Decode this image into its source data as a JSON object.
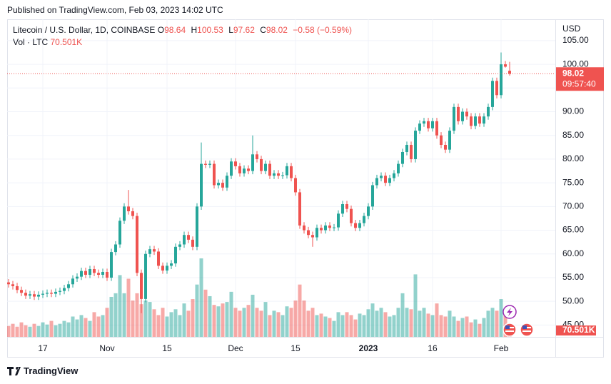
{
  "chart_data": {
    "type": "candlestick",
    "published": "Published on TradingView.com, Feb 03, 2023 14:02 UTC",
    "brand": "TradingView",
    "ohlc_letters": [
      "O",
      "H",
      "L",
      "C"
    ],
    "change": "−0.58 (−0.59%)",
    "ylabel": "USD",
    "countdown": "09:57:40",
    "grid": true,
    "ylim": [
      42.5,
      109.5
    ],
    "yticks": [
      {
        "value": 45,
        "label": "45.00"
      },
      {
        "value": 50,
        "label": "50.00"
      },
      {
        "value": 55,
        "label": "55.00"
      },
      {
        "value": 60,
        "label": "60.00"
      },
      {
        "value": 65,
        "label": "65.00"
      },
      {
        "value": 70,
        "label": "70.00"
      },
      {
        "value": 75,
        "label": "75.00"
      },
      {
        "value": 80,
        "label": "80.00"
      },
      {
        "value": 85,
        "label": "85.00"
      },
      {
        "value": 90,
        "label": "90.00"
      },
      {
        "value": 95,
        "label": "95.00"
      },
      {
        "value": 100,
        "label": "100.00"
      },
      {
        "value": 105,
        "label": "105.00"
      }
    ],
    "x": [
      null,
      null,
      null,
      null,
      null,
      null,
      null,
      null,
      "17",
      null,
      null,
      null,
      null,
      null,
      null,
      null,
      null,
      null,
      null,
      null,
      null,
      null,
      null,
      "Nov",
      null,
      null,
      null,
      null,
      null,
      null,
      null,
      null,
      null,
      null,
      null,
      null,
      null,
      "15",
      null,
      null,
      null,
      null,
      null,
      null,
      null,
      null,
      null,
      null,
      null,
      null,
      null,
      null,
      null,
      "Dec",
      null,
      null,
      null,
      null,
      null,
      null,
      null,
      null,
      null,
      null,
      null,
      null,
      null,
      "15",
      null,
      null,
      null,
      null,
      null,
      null,
      null,
      null,
      null,
      null,
      null,
      null,
      null,
      null,
      null,
      null,
      "2023",
      null,
      null,
      null,
      null,
      null,
      null,
      null,
      null,
      null,
      null,
      null,
      null,
      null,
      null,
      "16",
      null,
      null,
      null,
      null,
      null,
      null,
      null,
      null,
      null,
      null,
      null,
      null,
      null,
      null,
      null,
      "Feb",
      null,
      null
    ],
    "series": [
      {
        "name": "Litecoin / U.S. Dollar, 1D, COINBASE",
        "up_color": "#26a69a",
        "down_color": "#ef5350",
        "open": [
          54.0,
          53.6,
          53.2,
          52.4,
          51.8,
          51.2,
          51.5,
          51.0,
          51.4,
          51.6,
          51.8,
          51.6,
          52.0,
          52.2,
          52.8,
          53.6,
          54.8,
          55.2,
          56.4,
          55.6,
          56.8,
          56.0,
          55.6,
          56.2,
          55.0,
          60.4,
          62.0,
          67.0,
          70.0,
          69.0,
          68.0,
          56.0,
          50.5,
          60.0,
          61.0,
          60.5,
          57.5,
          56.5,
          57.5,
          58.0,
          61.5,
          62.0,
          64.0,
          63.0,
          61.5,
          70.0,
          79.0,
          78.8,
          79.0,
          74.5,
          75.0,
          74.0,
          76.5,
          79.5,
          78.5,
          77.0,
          78.0,
          77.5,
          81.0,
          80.0,
          77.5,
          79.0,
          76.5,
          77.0,
          76.5,
          76.6,
          78.5,
          76.0,
          73.0,
          66.0,
          65.0,
          64.0,
          63.5,
          65.5,
          65.0,
          66.0,
          65.5,
          65.6,
          68.5,
          70.5,
          69.5,
          66.5,
          65.5,
          66.5,
          68.0,
          70.0,
          74.5,
          76.0,
          76.5,
          75.0,
          76.0,
          77.0,
          79.0,
          81.5,
          83.0,
          80.0,
          86.0,
          87.5,
          88.0,
          86.5,
          88.0,
          85.0,
          83.0,
          82.0,
          86.0,
          91.0,
          88.0,
          90.0,
          89.0,
          87.0,
          89.0,
          87.5,
          89.0,
          91.0,
          96.5,
          93.5,
          100.0,
          98.64
        ],
        "high": [
          54.7,
          54.3,
          53.9,
          53.1,
          52.5,
          52.2,
          52.2,
          52.1,
          52.3,
          52.5,
          52.5,
          52.7,
          52.9,
          53.5,
          54.3,
          55.5,
          55.9,
          57.1,
          57.1,
          57.5,
          57.5,
          56.7,
          56.9,
          56.9,
          61.1,
          62.7,
          67.7,
          70.7,
          73.5,
          69.7,
          68.7,
          56.7,
          60.7,
          61.7,
          61.7,
          61.2,
          58.2,
          58.2,
          58.7,
          62.2,
          62.7,
          64.7,
          64.7,
          63.7,
          70.7,
          83.5,
          79.7,
          79.7,
          79.7,
          75.7,
          75.7,
          77.2,
          80.2,
          80.2,
          79.2,
          78.7,
          78.7,
          85.0,
          81.7,
          80.7,
          79.7,
          79.7,
          77.7,
          77.7,
          77.3,
          79.2,
          79.2,
          76.7,
          73.7,
          66.7,
          65.7,
          64.7,
          66.2,
          66.2,
          66.7,
          66.7,
          66.3,
          69.2,
          71.2,
          71.2,
          70.2,
          67.2,
          67.2,
          68.7,
          70.7,
          75.2,
          76.7,
          77.2,
          77.2,
          76.7,
          77.7,
          79.7,
          82.2,
          83.7,
          83.7,
          86.7,
          88.2,
          88.7,
          88.7,
          88.7,
          88.7,
          85.7,
          83.7,
          86.7,
          91.7,
          91.7,
          90.7,
          90.7,
          89.7,
          89.7,
          89.7,
          89.7,
          91.7,
          97.2,
          97.2,
          102.5,
          100.7,
          100.53
        ],
        "low": [
          52.9,
          52.5,
          51.7,
          51.1,
          50.5,
          50.5,
          50.3,
          50.3,
          50.7,
          50.9,
          50.9,
          50.9,
          51.3,
          51.5,
          52.1,
          52.9,
          54.1,
          54.5,
          54.9,
          54.9,
          55.3,
          54.9,
          54.9,
          54.3,
          54.3,
          59.7,
          61.3,
          66.3,
          68.3,
          67.3,
          55.3,
          47.5,
          49.8,
          59.3,
          59.8,
          56.8,
          55.8,
          55.8,
          56.8,
          57.3,
          60.8,
          61.3,
          62.3,
          60.8,
          60.8,
          69.3,
          78.1,
          78.1,
          73.8,
          73.8,
          73.3,
          73.3,
          75.8,
          77.8,
          76.3,
          76.3,
          76.8,
          76.8,
          79.3,
          76.8,
          76.8,
          75.8,
          75.8,
          75.8,
          75.8,
          75.9,
          75.3,
          72.3,
          65.3,
          64.3,
          63.3,
          61.5,
          62.8,
          64.3,
          64.3,
          64.8,
          64.8,
          64.9,
          67.8,
          68.8,
          65.8,
          64.8,
          64.8,
          65.8,
          67.3,
          69.3,
          73.8,
          75.3,
          74.3,
          74.3,
          75.3,
          76.3,
          78.3,
          80.8,
          79.3,
          79.3,
          85.3,
          86.8,
          85.8,
          85.8,
          84.3,
          82.3,
          81.3,
          81.3,
          85.3,
          87.3,
          87.3,
          88.3,
          86.3,
          86.3,
          86.8,
          86.8,
          88.3,
          90.3,
          92.8,
          92.8,
          99.3,
          97.62
        ],
        "close": [
          53.6,
          53.2,
          52.4,
          51.8,
          51.2,
          51.5,
          51.0,
          51.4,
          51.6,
          51.8,
          51.6,
          52.0,
          52.2,
          52.8,
          53.6,
          54.8,
          55.2,
          56.4,
          55.6,
          56.8,
          56.0,
          55.6,
          56.2,
          55.0,
          60.4,
          62.0,
          67.0,
          70.0,
          69.0,
          68.0,
          56.0,
          50.5,
          60.0,
          61.0,
          60.5,
          57.5,
          56.5,
          57.5,
          58.0,
          61.5,
          62.0,
          64.0,
          63.0,
          61.5,
          70.0,
          79.0,
          78.8,
          79.0,
          74.5,
          75.0,
          74.0,
          76.5,
          79.5,
          78.5,
          77.0,
          78.0,
          77.5,
          81.0,
          80.0,
          77.5,
          79.0,
          76.5,
          77.0,
          76.5,
          76.6,
          78.5,
          76.0,
          73.0,
          66.0,
          65.0,
          64.0,
          63.5,
          65.5,
          65.0,
          66.0,
          65.5,
          65.6,
          68.5,
          70.5,
          69.5,
          66.5,
          65.5,
          66.5,
          68.0,
          70.0,
          74.5,
          76.0,
          76.5,
          75.0,
          76.0,
          77.0,
          79.0,
          81.5,
          83.0,
          80.0,
          86.0,
          87.5,
          88.0,
          86.5,
          88.0,
          85.0,
          83.0,
          82.0,
          86.0,
          91.0,
          88.0,
          90.0,
          89.0,
          87.0,
          89.0,
          87.5,
          89.0,
          91.0,
          96.5,
          93.5,
          100.0,
          99.5,
          98.02
        ]
      }
    ],
    "volume": {
      "name": "Vol · LTC",
      "last_label": "70.501K",
      "up_color": "rgba(38,166,154,0.5)",
      "down_color": "rgba(239,83,80,0.5)",
      "values": [
        120000,
        144000,
        112000,
        160000,
        128000,
        112000,
        144000,
        120000,
        160000,
        136000,
        176000,
        128000,
        144000,
        176000,
        160000,
        224000,
        192000,
        240000,
        208000,
        176000,
        272000,
        224000,
        240000,
        320000,
        440000,
        480000,
        680000,
        480000,
        640000,
        400000,
        480000,
        360000,
        400000,
        384000,
        304000,
        240000,
        320000,
        224000,
        272000,
        304000,
        240000,
        368000,
        288000,
        416000,
        576000,
        864000,
        520000,
        448000,
        352000,
        336000,
        368000,
        384000,
        496000,
        320000,
        288000,
        320000,
        352000,
        464000,
        320000,
        288000,
        384000,
        240000,
        288000,
        272000,
        240000,
        336000,
        320000,
        400000,
        576000,
        400000,
        288000,
        320000,
        240000,
        256000,
        224000,
        208000,
        176000,
        272000,
        240000,
        272000,
        240000,
        192000,
        256000,
        240000,
        304000,
        368000,
        288000,
        320000,
        272000,
        224000,
        240000,
        320000,
        480000,
        320000,
        304000,
        688000,
        288000,
        320000,
        256000,
        240000,
        368000,
        240000,
        224000,
        288000,
        224000,
        176000,
        208000,
        224000,
        160000,
        192000,
        144000,
        208000,
        288000,
        320000,
        288000,
        416000,
        240000,
        70501
      ]
    }
  }
}
